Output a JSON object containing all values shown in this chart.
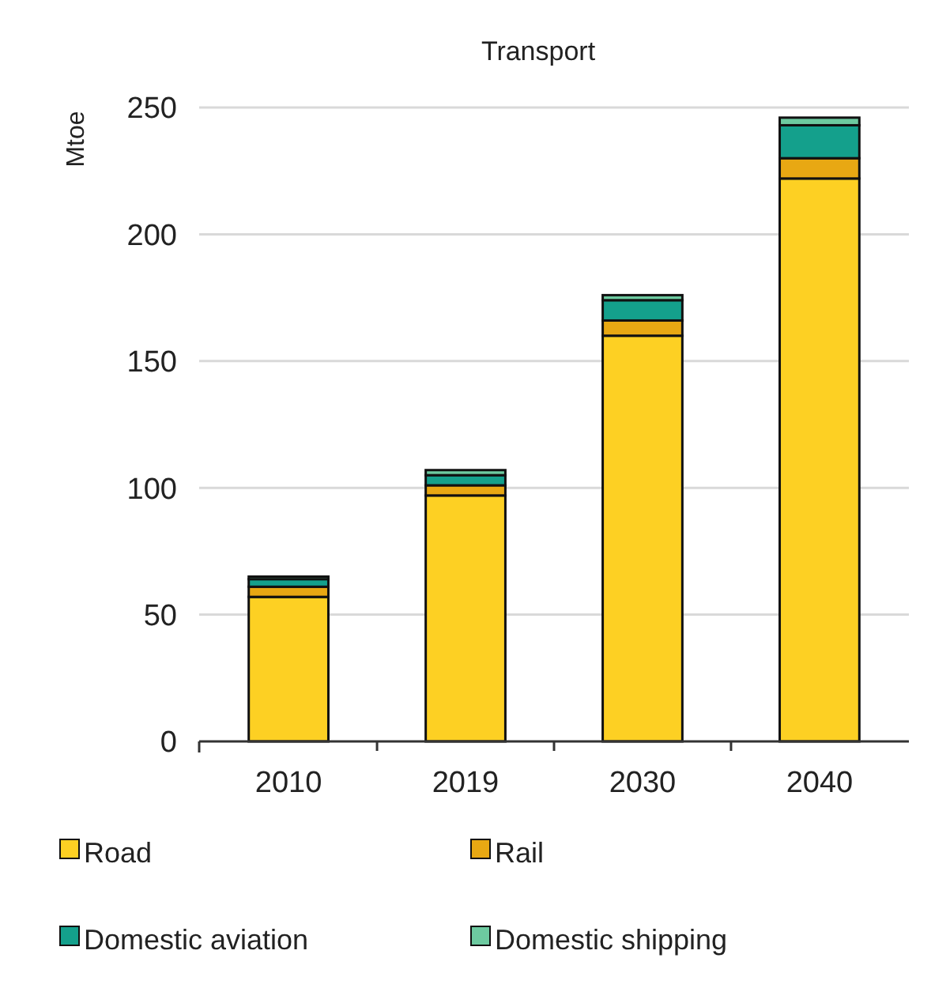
{
  "chart_data": {
    "type": "bar",
    "title": "Transport",
    "ylabel": "Mtoe",
    "categories": [
      "2010",
      "2019",
      "2030",
      "2040"
    ],
    "stacked": true,
    "series": [
      {
        "name": "Road",
        "color": "#fdd023",
        "values": [
          57,
          97,
          160,
          222
        ]
      },
      {
        "name": "Rail",
        "color": "#e8a813",
        "values": [
          4,
          4,
          6,
          8
        ]
      },
      {
        "name": "Domestic aviation",
        "color": "#14a08c",
        "values": [
          3,
          4,
          8,
          13
        ]
      },
      {
        "name": "Domestic shipping",
        "color": "#6dcaa0",
        "values": [
          1,
          2,
          2,
          3
        ]
      }
    ],
    "ylim": [
      0,
      250
    ],
    "yticks": [
      0,
      50,
      100,
      150,
      200,
      250
    ],
    "grid": "y",
    "legend": "bottom"
  }
}
